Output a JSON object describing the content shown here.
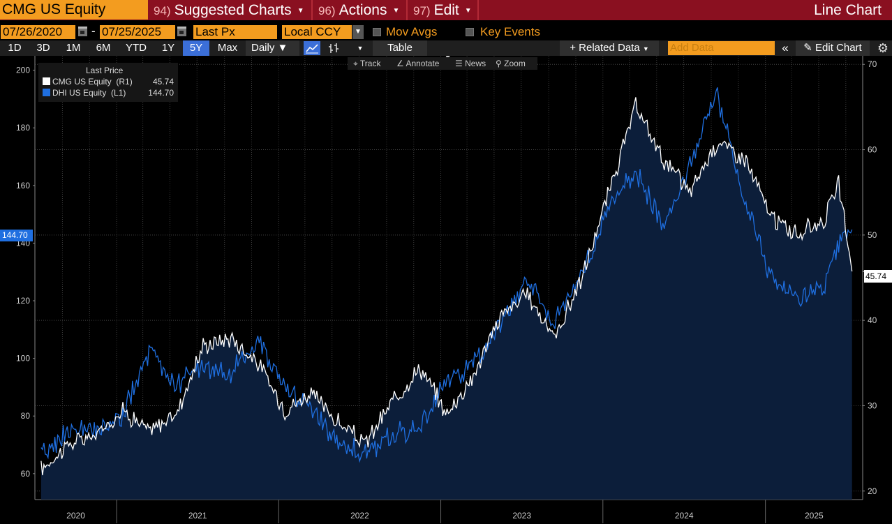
{
  "titlebar": {
    "ticker": "CMG US Equity",
    "menus": [
      {
        "num": "94)",
        "label": "Suggested Charts"
      },
      {
        "num": "96)",
        "label": "Actions"
      },
      {
        "num": "97)",
        "label": "Edit"
      }
    ],
    "chart_kind": "Line Chart"
  },
  "daterow": {
    "start_date": "07/26/2020",
    "dash": "-",
    "end_date": "07/25/2025",
    "field": "Last Px",
    "currency": "Local CCY",
    "mov_avgs": "Mov Avgs",
    "key_events": "Key Events"
  },
  "toolbar": {
    "ranges": [
      "1D",
      "3D",
      "1M",
      "6M",
      "YTD",
      "1Y",
      "5Y",
      "Max"
    ],
    "active_range": "5Y",
    "frequency": "Daily",
    "table": "Table",
    "related_data": "Related Data",
    "add_data_placeholder": "Add Data",
    "edit_chart": "Edit Chart"
  },
  "chart_tools": {
    "track": "Track",
    "annotate": "Annotate",
    "news": "News",
    "zoom": "Zoom"
  },
  "legend": {
    "title": "Last Price",
    "rows": [
      {
        "name": "CMG US Equity  (R1)",
        "value": "45.74",
        "color": "#ffffff"
      },
      {
        "name": "DHI US Equity  (L1)",
        "value": "144.70",
        "color": "#1f6fe0"
      }
    ]
  },
  "price_tags": {
    "left": "144.70",
    "right": "45.74"
  },
  "colors": {
    "accent_orange": "#f39c1f",
    "title_red": "#8a1020",
    "cmg_line": "#ffffff",
    "dhi_line": "#1f6fe0",
    "area_fill": "#0c1e3a"
  },
  "chart_data": {
    "type": "line",
    "title": "",
    "x_labels": [
      "2020",
      "2021",
      "2022",
      "2023",
      "2024",
      "2025"
    ],
    "left_axis": {
      "label": "",
      "ticks": [
        60,
        80,
        100,
        120,
        140,
        160,
        180,
        200
      ],
      "range": [
        51,
        205
      ]
    },
    "right_axis": {
      "label": "",
      "ticks": [
        20,
        30,
        40,
        50,
        60,
        70
      ],
      "range": [
        19,
        71
      ]
    },
    "grid": true,
    "legend_position": "top-left",
    "series": [
      {
        "name": "CMG US Equity (R1)",
        "axis": "right",
        "points": [
          [
            "2020-07",
            22.5
          ],
          [
            "2020-09",
            25.5
          ],
          [
            "2020-11",
            26.5
          ],
          [
            "2021-01",
            29.5
          ],
          [
            "2021-03",
            27.0
          ],
          [
            "2021-05",
            29.0
          ],
          [
            "2021-07",
            37.0
          ],
          [
            "2021-09",
            38.0
          ],
          [
            "2021-11",
            35.0
          ],
          [
            "2022-01",
            29.5
          ],
          [
            "2022-03",
            31.5
          ],
          [
            "2022-05",
            28.0
          ],
          [
            "2022-07",
            25.5
          ],
          [
            "2022-09",
            30.5
          ],
          [
            "2022-11",
            34.5
          ],
          [
            "2023-01",
            29.0
          ],
          [
            "2023-03",
            33.5
          ],
          [
            "2023-05",
            40.5
          ],
          [
            "2023-07",
            43.0
          ],
          [
            "2023-09",
            38.0
          ],
          [
            "2023-11",
            45.0
          ],
          [
            "2024-01",
            55.0
          ],
          [
            "2024-03",
            65.0
          ],
          [
            "2024-05",
            59.0
          ],
          [
            "2024-07",
            55.0
          ],
          [
            "2024-09",
            61.0
          ],
          [
            "2024-11",
            59.0
          ],
          [
            "2025-01",
            52.0
          ],
          [
            "2025-03",
            50.0
          ],
          [
            "2025-05",
            52.0
          ],
          [
            "2025-06",
            56.0
          ],
          [
            "2025-07",
            45.74
          ]
        ]
      },
      {
        "name": "DHI US Equity (L1)",
        "axis": "left",
        "points": [
          [
            "2020-07",
            66
          ],
          [
            "2020-09",
            75
          ],
          [
            "2020-11",
            74
          ],
          [
            "2021-01",
            80
          ],
          [
            "2021-03",
            102
          ],
          [
            "2021-05",
            91
          ],
          [
            "2021-07",
            97
          ],
          [
            "2021-09",
            94
          ],
          [
            "2021-11",
            107
          ],
          [
            "2022-01",
            90
          ],
          [
            "2022-03",
            82
          ],
          [
            "2022-05",
            72
          ],
          [
            "2022-07",
            66
          ],
          [
            "2022-09",
            74
          ],
          [
            "2022-11",
            76
          ],
          [
            "2023-01",
            92
          ],
          [
            "2023-03",
            98
          ],
          [
            "2023-05",
            112
          ],
          [
            "2023-07",
            128
          ],
          [
            "2023-09",
            112
          ],
          [
            "2023-11",
            130
          ],
          [
            "2024-01",
            152
          ],
          [
            "2024-03",
            165
          ],
          [
            "2024-05",
            146
          ],
          [
            "2024-07",
            168
          ],
          [
            "2024-09",
            192
          ],
          [
            "2024-11",
            155
          ],
          [
            "2025-01",
            128
          ],
          [
            "2025-03",
            120
          ],
          [
            "2025-05",
            125
          ],
          [
            "2025-06",
            138
          ],
          [
            "2025-07",
            144.7
          ]
        ]
      }
    ]
  }
}
